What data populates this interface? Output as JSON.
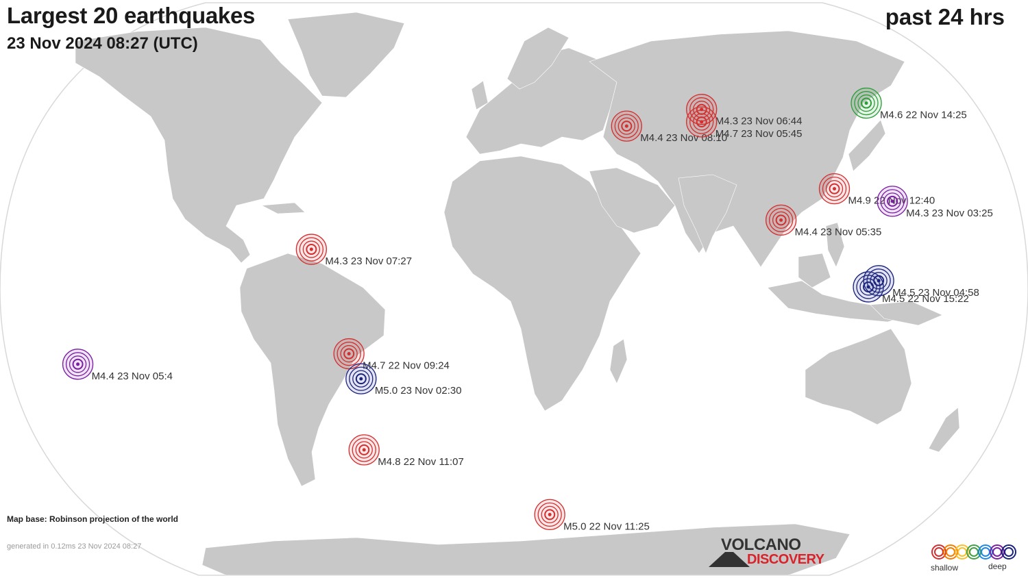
{
  "header": {
    "title": "Largest 20 earthquakes",
    "date": "23 Nov 2024 08:27 (UTC)",
    "period": "past 24 hrs"
  },
  "footer": {
    "map_base": "Map base: Robinson projection of the world",
    "generated": "generated in 0.12ms 23 Nov 2024 08:27"
  },
  "logo": {
    "line1": "VOLCANO",
    "line2": "DISCOVERY"
  },
  "legend": {
    "shallow": "shallow",
    "deep": "deep",
    "colors": [
      "#d32f2f",
      "#f57c00",
      "#fbc02d",
      "#43a047",
      "#1e88e5",
      "#7b1fa2",
      "#1a237e"
    ]
  },
  "colors": {
    "land": "#c8c8c8",
    "ocean": "#ffffff",
    "shallow": "#d32f2f",
    "deep_blue": "#1a237e",
    "purple": "#7b1fa2",
    "green": "#2e9d3a"
  },
  "earthquakes": [
    {
      "label": "M4.3 23 Nov 07:27",
      "color": "#d32f2f",
      "lon": -84.5,
      "lat": 9.5
    },
    {
      "label": "M4.7 22 Nov 09:24",
      "color": "#d32f2f",
      "lon": -72.0,
      "lat": -15.5
    },
    {
      "label": "M5.0 23 Nov 02:30",
      "color": "#1a237e",
      "lon": -69.0,
      "lat": -21.5
    },
    {
      "label": "M4.8 22 Nov 11:07",
      "color": "#d32f2f",
      "lon": -73.0,
      "lat": -38.5
    },
    {
      "label": "M5.0 22 Nov 11:25",
      "color": "#d32f2f",
      "lon": 7.0,
      "lat": -54.0
    },
    {
      "label": "M4.4 23 Nov 08:10",
      "color": "#d32f2f",
      "lon": 39.5,
      "lat": 39.0
    },
    {
      "label": "M4.3 23 Nov 06:44",
      "color": "#d32f2f",
      "lon": 73.0,
      "lat": 43.0
    },
    {
      "label": "M4.7 23 Nov 05:45",
      "color": "#d32f2f",
      "lon": 72.0,
      "lat": 40.0
    },
    {
      "label": "M4.6 22 Nov 14:25",
      "color": "#2e9d3a",
      "lon": 146.0,
      "lat": 44.5
    },
    {
      "label": "M4.9 22 Nov 12:40",
      "color": "#d32f2f",
      "lon": 120.5,
      "lat": 24.0
    },
    {
      "label": "M4.3 23 Nov 03:25",
      "color": "#7b1fa2",
      "lon": 142.0,
      "lat": 21.0
    },
    {
      "label": "M4.4 23 Nov 05:35",
      "color": "#d32f2f",
      "lon": 96.0,
      "lat": 16.5
    },
    {
      "label": "M4.5 23 Nov 04:58",
      "color": "#1a237e",
      "lon": 126.5,
      "lat": 2.0
    },
    {
      "label": "M4.5 22 Nov 15:22",
      "color": "#1a237e",
      "lon": 122.0,
      "lat": 0.5
    },
    {
      "label": "M4.4 23 Nov 05:4",
      "color": "#7b1fa2",
      "lon": -179.0,
      "lat": -18.0
    }
  ]
}
